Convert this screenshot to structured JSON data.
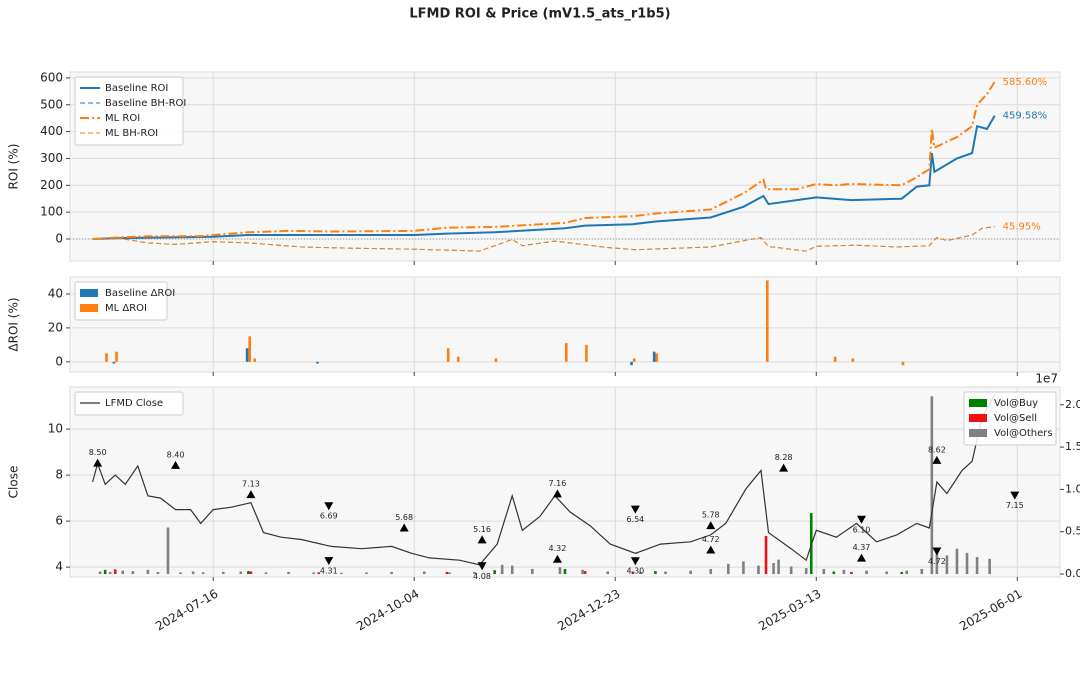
{
  "title": "LFMD ROI & Price (mV1.5_ats_r1b5)",
  "chart_data": [
    {
      "type": "line",
      "ylabel": "ROI (%)",
      "xlim": [
        "2024-05-20",
        "2025-06-18"
      ],
      "xticks": [
        "2024-07-16",
        "2024-10-04",
        "2024-12-23",
        "2025-03-13",
        "2025-06-01"
      ],
      "ylim": [
        -82,
        622
      ],
      "yticks": [
        0,
        100,
        200,
        300,
        400,
        500,
        600
      ],
      "grid": true,
      "legend": "upper left",
      "series": [
        {
          "name": "Baseline ROI",
          "color": "#1f77b4",
          "linestyle": "solid",
          "width": 2,
          "x": [
            "2024-05-29",
            "2024-06-07",
            "2024-07-16",
            "2024-07-30",
            "2024-10-04",
            "2024-10-17",
            "2024-11-05",
            "2024-12-03",
            "2024-12-11",
            "2024-12-30",
            "2025-01-08",
            "2025-01-30",
            "2025-02-12",
            "2025-02-20",
            "2025-02-22",
            "2025-03-13",
            "2025-03-27",
            "2025-04-16",
            "2025-04-22",
            "2025-04-27",
            "2025-04-28",
            "2025-04-29",
            "2025-05-08",
            "2025-05-14",
            "2025-05-16",
            "2025-05-20",
            "2025-05-23"
          ],
          "values": [
            0,
            3,
            8,
            15,
            15,
            20,
            25,
            40,
            50,
            55,
            65,
            80,
            120,
            160,
            130,
            155,
            145,
            150,
            195,
            200,
            320,
            250,
            300,
            320,
            420,
            410,
            459.58
          ]
        },
        {
          "name": "Baseline BH-ROI",
          "color": "#1f77b4",
          "linestyle": "dashed",
          "width": 1,
          "x": [
            "2024-05-29",
            "2024-06-07",
            "2024-06-20",
            "2024-07-01",
            "2024-07-16",
            "2024-07-31",
            "2024-08-20",
            "2024-09-13",
            "2024-10-04",
            "2024-10-30",
            "2024-11-12",
            "2024-11-16",
            "2024-11-29",
            "2024-12-21",
            "2024-12-31",
            "2025-01-30",
            "2025-02-13",
            "2025-02-19",
            "2025-02-22",
            "2025-03-09",
            "2025-03-13",
            "2025-03-29",
            "2025-04-14",
            "2025-04-27",
            "2025-04-30",
            "2025-05-04",
            "2025-05-14",
            "2025-05-18",
            "2025-05-23"
          ],
          "values": [
            0,
            5,
            -15,
            -20,
            -10,
            -15,
            -30,
            -35,
            -38,
            -45,
            -2,
            -25,
            -8,
            -33,
            -40,
            -30,
            -5,
            5,
            -28,
            -45,
            -27,
            -23,
            -30,
            -25,
            5,
            -6,
            15,
            40,
            45.95
          ]
        },
        {
          "name": "ML ROI",
          "color": "#ff7f0e",
          "linestyle": "dashdot",
          "width": 2,
          "x": [
            "2024-05-29",
            "2024-06-07",
            "2024-06-20",
            "2024-07-10",
            "2024-07-16",
            "2024-07-30",
            "2024-08-15",
            "2024-09-01",
            "2024-10-04",
            "2024-10-17",
            "2024-11-05",
            "2024-12-03",
            "2024-12-11",
            "2024-12-30",
            "2025-01-08",
            "2025-01-30",
            "2025-02-12",
            "2025-02-20",
            "2025-02-21",
            "2025-03-05",
            "2025-03-13",
            "2025-03-20",
            "2025-03-27",
            "2025-04-16",
            "2025-04-22",
            "2025-04-27",
            "2025-04-28",
            "2025-04-29",
            "2025-05-08",
            "2025-05-14",
            "2025-05-16",
            "2025-05-20",
            "2025-05-23"
          ],
          "values": [
            0,
            5,
            10,
            10,
            15,
            25,
            30,
            28,
            30,
            42,
            45,
            60,
            78,
            85,
            95,
            110,
            170,
            220,
            185,
            185,
            205,
            200,
            205,
            200,
            230,
            260,
            410,
            340,
            380,
            420,
            500,
            540,
            585.6
          ]
        },
        {
          "name": "ML BH-ROI",
          "color": "#ff7f0e",
          "linestyle": "dashed",
          "width": 1,
          "x": [
            "2024-05-29",
            "2024-06-07",
            "2024-06-20",
            "2024-07-01",
            "2024-07-16",
            "2024-07-31",
            "2024-08-20",
            "2024-09-13",
            "2024-10-04",
            "2024-10-30",
            "2024-11-12",
            "2024-11-16",
            "2024-11-29",
            "2024-12-21",
            "2024-12-31",
            "2025-01-30",
            "2025-02-13",
            "2025-02-19",
            "2025-02-22",
            "2025-03-09",
            "2025-03-13",
            "2025-03-29",
            "2025-04-14",
            "2025-04-27",
            "2025-04-30",
            "2025-05-04",
            "2025-05-14",
            "2025-05-18",
            "2025-05-23"
          ],
          "values": [
            0,
            5,
            -15,
            -20,
            -10,
            -15,
            -30,
            -35,
            -38,
            -45,
            -2,
            -25,
            -8,
            -33,
            -40,
            -30,
            -5,
            5,
            -28,
            -45,
            -27,
            -23,
            -30,
            -25,
            5,
            -6,
            15,
            40,
            45.95
          ]
        }
      ],
      "annotations": [
        {
          "x": "2025-05-23",
          "value": 585.6,
          "label": "585.60%",
          "color": "#ff7f0e"
        },
        {
          "x": "2025-05-23",
          "value": 459.58,
          "label": "459.58%",
          "color": "#1f77b4"
        },
        {
          "x": "2025-05-23",
          "value": 45.95,
          "label": "45.95%",
          "color": "#ff7f0e"
        }
      ]
    },
    {
      "type": "bar",
      "ylabel": "ΔROI (%)",
      "xlim": [
        "2024-05-20",
        "2025-06-18"
      ],
      "xticks": [
        "2024-07-16",
        "2024-10-04",
        "2024-12-23",
        "2025-03-13",
        "2025-06-01"
      ],
      "ylim": [
        -6,
        50
      ],
      "yticks": [
        0,
        20,
        40
      ],
      "grid": true,
      "legend": "upper left",
      "x": [
        "2024-06-03",
        "2024-06-07",
        "2024-07-30",
        "2024-08-01",
        "2024-08-27",
        "2024-10-17",
        "2024-10-21",
        "2024-11-05",
        "2024-12-03",
        "2024-12-11",
        "2024-12-30",
        "2025-01-08",
        "2025-02-21",
        "2025-03-20",
        "2025-03-27",
        "2025-04-16"
      ],
      "series": [
        {
          "name": "Baseline ΔROI",
          "color": "#1f77b4",
          "values": [
            null,
            -1,
            8,
            null,
            -1,
            null,
            null,
            null,
            null,
            null,
            -2,
            6,
            null,
            null,
            null,
            null
          ]
        },
        {
          "name": "ML ΔROI",
          "color": "#ff7f0e",
          "values": [
            5,
            6,
            15,
            2,
            null,
            8,
            3,
            2,
            11,
            10,
            2,
            5,
            48,
            3,
            2,
            -2
          ]
        }
      ]
    },
    {
      "type": "line",
      "ylabel": "Close",
      "xlim": [
        "2024-05-20",
        "2025-06-18"
      ],
      "xticks": [
        "2024-07-16",
        "2024-10-04",
        "2024-12-23",
        "2025-03-13",
        "2025-06-01"
      ],
      "ylim": [
        3.57,
        11.83
      ],
      "yticks": [
        4,
        6,
        8,
        10
      ],
      "grid": true,
      "legend": "upper left",
      "y2lim": [
        -350000,
        22100000
      ],
      "y2_offset_label": "1e7",
      "y2_legend": "upper right",
      "y2ticks": [
        {
          "value": 0,
          "label": "0.0"
        },
        {
          "value": 5000000,
          "label": "0.5"
        },
        {
          "value": 10000000,
          "label": "1.0"
        },
        {
          "value": 15000000,
          "label": "1.5"
        },
        {
          "value": 20000000,
          "label": "2.0"
        }
      ],
      "series": [
        {
          "name": "LFMD Close",
          "color": "#333333",
          "x": [
            "2024-05-29",
            "2024-05-31",
            "2024-06-03",
            "2024-06-07",
            "2024-06-11",
            "2024-06-16",
            "2024-06-20",
            "2024-06-25",
            "2024-07-01",
            "2024-07-07",
            "2024-07-11",
            "2024-07-16",
            "2024-07-23",
            "2024-07-31",
            "2024-08-05",
            "2024-08-12",
            "2024-08-20",
            "2024-09-01",
            "2024-09-13",
            "2024-09-25",
            "2024-10-03",
            "2024-10-10",
            "2024-10-22",
            "2024-10-30",
            "2024-11-06",
            "2024-11-12",
            "2024-11-16",
            "2024-11-23",
            "2024-11-29",
            "2024-12-05",
            "2024-12-13",
            "2024-12-21",
            "2024-12-31",
            "2025-01-10",
            "2025-01-22",
            "2025-01-30",
            "2025-02-05",
            "2025-02-13",
            "2025-02-19",
            "2025-02-22",
            "2025-03-03",
            "2025-03-09",
            "2025-03-13",
            "2025-03-21",
            "2025-03-29",
            "2025-04-06",
            "2025-04-14",
            "2025-04-22",
            "2025-04-27",
            "2025-04-30",
            "2025-05-04",
            "2025-05-10",
            "2025-05-14",
            "2025-05-18",
            "2025-05-23"
          ],
          "values": [
            7.7,
            8.5,
            7.6,
            8.0,
            7.6,
            8.4,
            7.1,
            7.0,
            6.5,
            6.5,
            5.9,
            6.5,
            6.6,
            6.8,
            5.5,
            5.3,
            5.2,
            4.9,
            4.8,
            4.9,
            4.6,
            4.4,
            4.3,
            4.1,
            5.0,
            7.1,
            5.6,
            6.2,
            7.1,
            6.4,
            5.8,
            5.0,
            4.6,
            5.0,
            5.1,
            5.4,
            5.9,
            7.4,
            8.2,
            5.5,
            4.8,
            4.3,
            5.6,
            5.3,
            5.9,
            5.1,
            5.4,
            5.9,
            5.7,
            7.7,
            7.2,
            8.2,
            8.6,
            10.5,
            11.5
          ]
        },
        {
          "name": "Vol@Buy",
          "color": "#008000",
          "axis": "y2",
          "x": [
            "2024-06-03",
            "2024-07-30",
            "2024-11-05",
            "2024-12-03",
            "2025-01-08",
            "2025-03-11",
            "2025-03-20",
            "2025-04-16"
          ],
          "values": [
            500000,
            350000,
            450000,
            600000,
            350000,
            7200000,
            300000,
            250000
          ]
        },
        {
          "name": "Vol@Sell",
          "color": "#ee1111",
          "axis": "y2",
          "x": [
            "2024-06-07",
            "2024-07-31",
            "2024-08-27",
            "2024-10-17",
            "2024-12-11",
            "2024-12-30",
            "2025-02-21",
            "2025-03-27"
          ],
          "values": [
            550000,
            300000,
            200000,
            250000,
            350000,
            300000,
            4500000,
            250000
          ]
        },
        {
          "name": "Vol@Others",
          "color": "#808080",
          "axis": "y2",
          "x": [
            "2024-06-01",
            "2024-06-05",
            "2024-06-10",
            "2024-06-14",
            "2024-06-20",
            "2024-06-24",
            "2024-06-28",
            "2024-07-03",
            "2024-07-08",
            "2024-07-12",
            "2024-07-20",
            "2024-07-27",
            "2024-08-06",
            "2024-08-15",
            "2024-08-25",
            "2024-09-05",
            "2024-09-15",
            "2024-09-25",
            "2024-10-08",
            "2024-10-18",
            "2024-10-28",
            "2024-11-08",
            "2024-11-12",
            "2024-11-20",
            "2024-12-01",
            "2024-12-10",
            "2024-12-20",
            "2025-01-02",
            "2025-01-12",
            "2025-01-22",
            "2025-01-30",
            "2025-02-06",
            "2025-02-12",
            "2025-02-18",
            "2025-02-24",
            "2025-02-26",
            "2025-03-03",
            "2025-03-09",
            "2025-03-16",
            "2025-03-24",
            "2025-04-02",
            "2025-04-10",
            "2025-04-18",
            "2025-04-24",
            "2025-04-28",
            "2025-04-30",
            "2025-05-04",
            "2025-05-08",
            "2025-05-12",
            "2025-05-16",
            "2025-05-21"
          ],
          "values": [
            300000,
            250000,
            400000,
            350000,
            500000,
            250000,
            5500000,
            200000,
            300000,
            200000,
            250000,
            300000,
            200000,
            250000,
            200000,
            150000,
            200000,
            250000,
            300000,
            200000,
            250000,
            1100000,
            1000000,
            600000,
            800000,
            500000,
            300000,
            250000,
            300000,
            400000,
            600000,
            1200000,
            1500000,
            1000000,
            1300000,
            1700000,
            900000,
            700000,
            600000,
            500000,
            400000,
            300000,
            400000,
            600000,
            21000000,
            2800000,
            2200000,
            3000000,
            2500000,
            2000000,
            1800000
          ]
        }
      ],
      "annotations": [
        {
          "x": "2024-05-31",
          "value": 8.5,
          "label": "8.50",
          "marker": "up"
        },
        {
          "x": "2024-07-01",
          "value": 8.4,
          "label": "8.40",
          "marker": "up"
        },
        {
          "x": "2024-07-31",
          "value": 7.13,
          "label": "7.13",
          "marker": "up"
        },
        {
          "x": "2024-08-31",
          "value": 6.69,
          "label": "6.69",
          "marker": "down"
        },
        {
          "x": "2024-08-31",
          "value": 4.31,
          "label": "4.31",
          "marker": "down"
        },
        {
          "x": "2024-09-30",
          "value": 5.68,
          "label": "5.68",
          "marker": "up"
        },
        {
          "x": "2024-10-31",
          "value": 5.16,
          "label": "5.16",
          "marker": "up"
        },
        {
          "x": "2024-10-31",
          "value": 4.08,
          "label": "4.08",
          "marker": "down"
        },
        {
          "x": "2024-11-30",
          "value": 7.16,
          "label": "7.16",
          "marker": "up"
        },
        {
          "x": "2024-11-30",
          "value": 4.32,
          "label": "4.32",
          "marker": "up"
        },
        {
          "x": "2024-12-31",
          "value": 6.54,
          "label": "6.54",
          "marker": "down"
        },
        {
          "x": "2024-12-31",
          "value": 4.3,
          "label": "4.30",
          "marker": "down"
        },
        {
          "x": "2025-01-30",
          "value": 5.78,
          "label": "5.78",
          "marker": "up"
        },
        {
          "x": "2025-01-30",
          "value": 4.72,
          "label": "4.72",
          "marker": "up"
        },
        {
          "x": "2025-02-28",
          "value": 8.28,
          "label": "8.28",
          "marker": "up"
        },
        {
          "x": "2025-03-31",
          "value": 6.1,
          "label": "6.10",
          "marker": "down"
        },
        {
          "x": "2025-03-31",
          "value": 4.37,
          "label": "4.37",
          "marker": "up"
        },
        {
          "x": "2025-04-30",
          "value": 8.62,
          "label": "8.62",
          "marker": "up"
        },
        {
          "x": "2025-04-30",
          "value": 4.72,
          "label": "4.72",
          "marker": "down"
        },
        {
          "x": "2025-05-31",
          "value": 7.15,
          "label": "7.15",
          "marker": "down"
        }
      ]
    }
  ]
}
